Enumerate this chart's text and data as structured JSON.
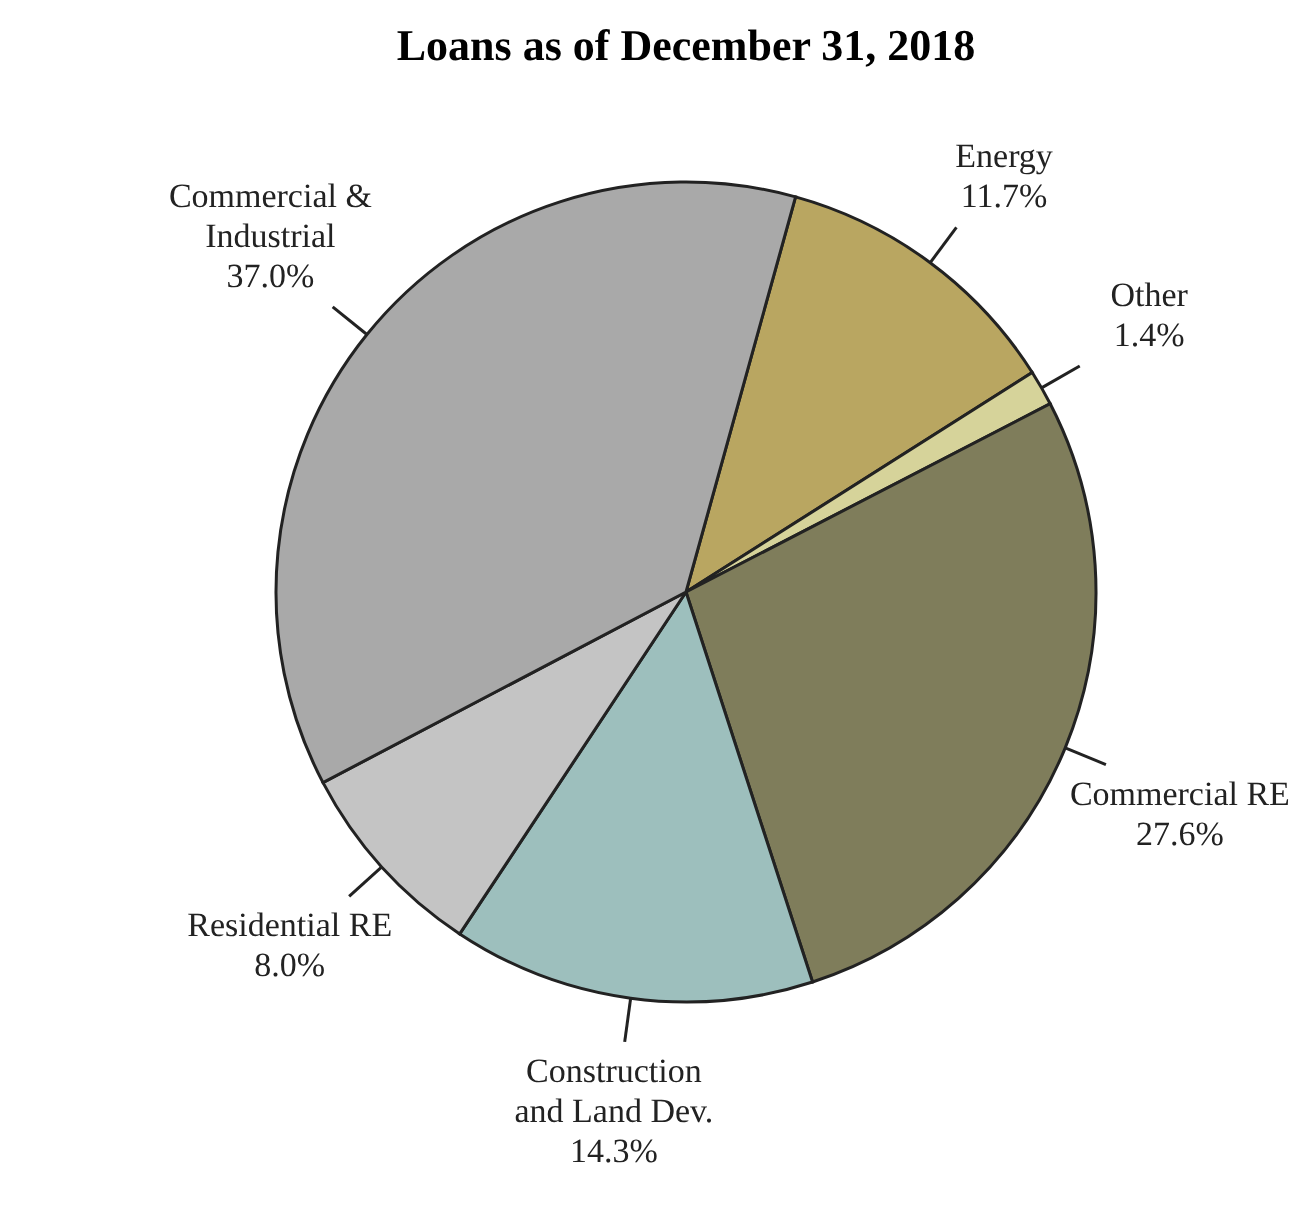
{
  "chart_data": {
    "type": "pie",
    "title": "Loans as of December 31, 2018",
    "categories": [
      "Energy",
      "Other",
      "Commercial RE",
      "Construction and Land Dev.",
      "Residential RE",
      "Commercial & Industrial"
    ],
    "values": [
      11.7,
      1.4,
      27.6,
      14.3,
      8.0,
      37.0
    ],
    "value_labels": [
      "11.7%",
      "1.4%",
      "27.6%",
      "14.3%",
      "8.0%",
      "37.0%"
    ],
    "colors": [
      "#b9a661",
      "#d6d39a",
      "#7f7d5b",
      "#9dbfbd",
      "#c4c4c4",
      "#a9a9a9"
    ]
  }
}
